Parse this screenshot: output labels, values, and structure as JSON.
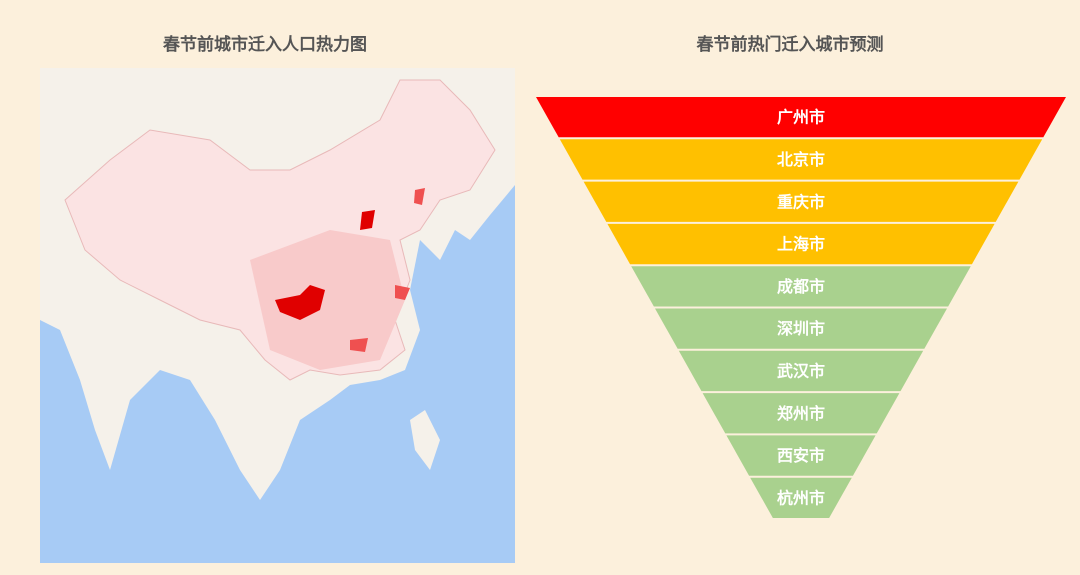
{
  "map_panel": {
    "title": "春节前城市迁入人口热力图"
  },
  "funnel_panel": {
    "title": "春节前热门迁入城市预测",
    "levels": [
      {
        "label": "广州市",
        "color": "#ff0000"
      },
      {
        "label": "北京市",
        "color": "#ffc000"
      },
      {
        "label": "重庆市",
        "color": "#ffc000"
      },
      {
        "label": "上海市",
        "color": "#ffc000"
      },
      {
        "label": "成都市",
        "color": "#a9d18e"
      },
      {
        "label": "深圳市",
        "color": "#a9d18e"
      },
      {
        "label": "武汉市",
        "color": "#a9d18e"
      },
      {
        "label": "郑州市",
        "color": "#a9d18e"
      },
      {
        "label": "西安市",
        "color": "#a9d18e"
      },
      {
        "label": "杭州市",
        "color": "#a9d18e"
      }
    ]
  }
}
